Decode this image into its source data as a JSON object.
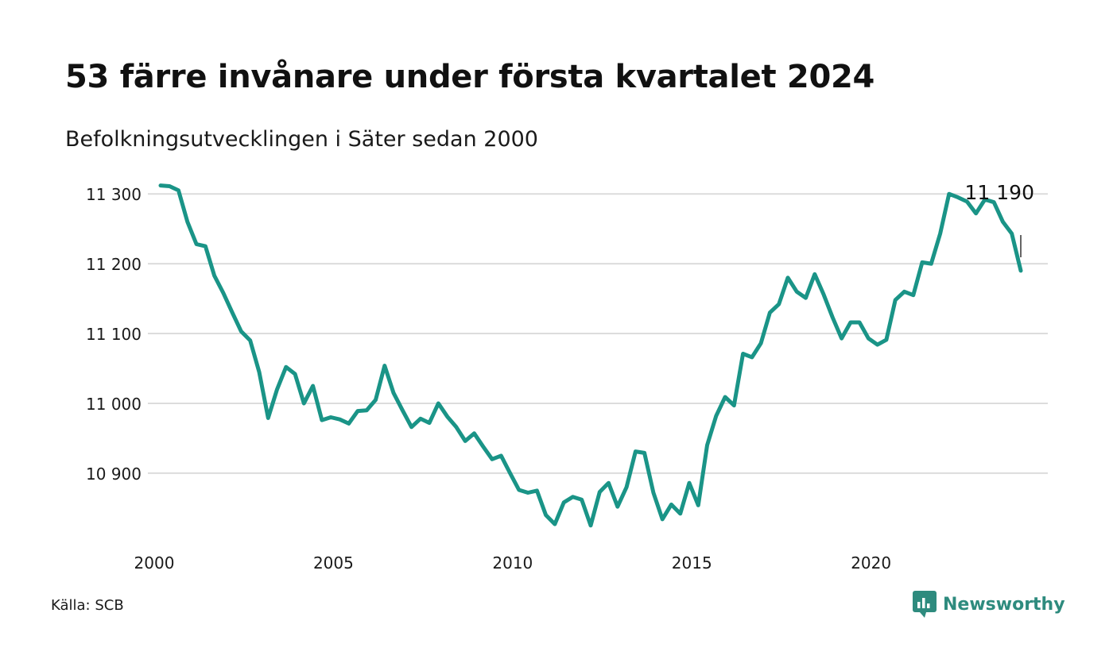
{
  "title": "53 färre invånare under första kvartalet 2024",
  "subtitle": "Befolkningsutvecklingen i Säter sedan 2000",
  "source": "Källa: SCB",
  "brand": {
    "name": "Newsworthy",
    "icon": "newsworthy-logo-icon",
    "color": "#2e8b7e"
  },
  "chart_data": {
    "type": "line",
    "line_color": "#1a9487",
    "grid": true,
    "xlim": [
      2000,
      2024.25
    ],
    "ylim": [
      10810,
      11315
    ],
    "x_ticks": [
      2000,
      2005,
      2010,
      2015,
      2020
    ],
    "x_tick_labels": [
      "2000",
      "2005",
      "2010",
      "2015",
      "2020"
    ],
    "y_ticks": [
      10900,
      11000,
      11100,
      11200,
      11300
    ],
    "y_tick_labels": [
      "10 900",
      "11 000",
      "11 100",
      "11 200",
      "11 300"
    ],
    "last_value_label": "11 190",
    "series": [
      {
        "x": [
          2000.0,
          2000.25,
          2000.5,
          2000.75,
          2001.0,
          2001.25,
          2001.5,
          2001.75,
          2002.0,
          2002.25,
          2002.5,
          2002.75,
          2003.0,
          2003.25,
          2003.5,
          2003.75,
          2004.0,
          2004.25,
          2004.5,
          2004.75,
          2005.0,
          2005.25,
          2005.5,
          2005.75,
          2006.0,
          2006.25,
          2006.5,
          2006.75,
          2007.0,
          2007.25,
          2007.5,
          2007.75,
          2008.0,
          2008.25,
          2008.5,
          2008.75,
          2009.0,
          2009.25,
          2009.5,
          2009.75,
          2010.0,
          2010.25,
          2010.5,
          2010.75,
          2011.0,
          2011.25,
          2011.5,
          2011.75,
          2012.0,
          2012.25,
          2012.5,
          2012.75,
          2013.0,
          2013.25,
          2013.5,
          2013.75,
          2014.0,
          2014.25,
          2014.5,
          2014.75,
          2015.0,
          2015.25,
          2015.5,
          2015.75,
          2016.0,
          2016.25,
          2016.5,
          2016.75,
          2017.0,
          2017.25,
          2017.5,
          2017.75,
          2018.0,
          2018.25,
          2018.5,
          2018.75,
          2019.0,
          2019.25,
          2019.5,
          2019.75,
          2020.0,
          2020.25,
          2020.5,
          2020.75,
          2021.0,
          2021.25,
          2021.5,
          2021.75,
          2022.0,
          2022.25,
          2022.5,
          2022.75,
          2023.0,
          2023.25,
          2023.5,
          2023.75,
          2024.0
        ],
        "y": [
          11312,
          11311,
          11305,
          11260,
          11228,
          11225,
          11183,
          11158,
          11130,
          11103,
          11090,
          11045,
          10979,
          11020,
          11052,
          11042,
          11000,
          11025,
          10976,
          10980,
          10977,
          10971,
          10989,
          10990,
          11005,
          11054,
          11015,
          10990,
          10966,
          10978,
          10972,
          11000,
          10981,
          10966,
          10946,
          10957,
          10938,
          10920,
          10925,
          10900,
          10876,
          10872,
          10875,
          10840,
          10827,
          10858,
          10866,
          10862,
          10825,
          10873,
          10886,
          10852,
          10880,
          10931,
          10929,
          10872,
          10834,
          10855,
          10842,
          10886,
          10854,
          10940,
          10982,
          11009,
          10997,
          11071,
          11066,
          11086,
          11130,
          11142,
          11180,
          11160,
          11151,
          11185,
          11156,
          11123,
          11093,
          11116,
          11116,
          11093,
          11084,
          11091,
          11148,
          11160,
          11155,
          11202,
          11200,
          11243,
          11300,
          11295,
          11289,
          11272,
          11292,
          11288,
          11260,
          11243,
          11190
        ]
      }
    ]
  }
}
